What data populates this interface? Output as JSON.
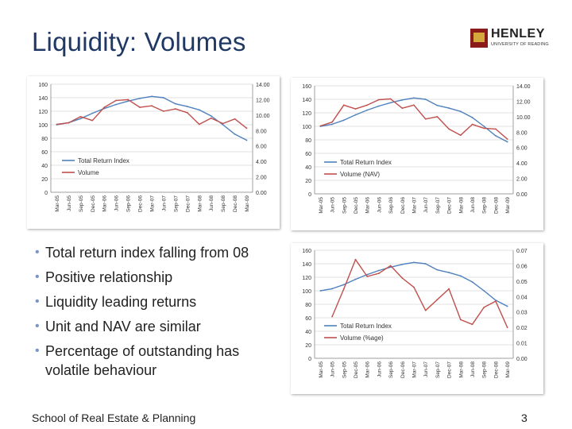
{
  "slide": {
    "title": "Liquidity: Volumes",
    "footer": "School of Real Estate & Planning",
    "page_number": "3",
    "logo": {
      "name": "HENLEY",
      "sub": "UNIVERSITY OF READING"
    }
  },
  "bullets": [
    "Total return index falling from 08",
    "Positive relationship",
    "Liquidity leading returns",
    "Unit and NAV are similar",
    "Percentage of outstanding has volatile behaviour"
  ],
  "colors": {
    "tri": "#4f81bd",
    "vol": "#c0504d",
    "grid": "#d9d9d9",
    "title": "#1f3864"
  },
  "chart_data": [
    {
      "type": "line",
      "categories": [
        "Mar-05",
        "Jun-05",
        "Sep-05",
        "Dec-05",
        "Mar-06",
        "Jun-06",
        "Sep-06",
        "Dec-06",
        "Mar-07",
        "Jun-07",
        "Sep-07",
        "Dec-07",
        "Mar-08",
        "Jun-08",
        "Sep-08",
        "Dec-08",
        "Mar-09"
      ],
      "left_axis": {
        "min": 0,
        "max": 160,
        "ticks": [
          "0",
          "20",
          "40",
          "60",
          "80",
          "100",
          "120",
          "140",
          "160"
        ]
      },
      "right_axis": {
        "min": 0,
        "max": 14,
        "ticks": [
          "0.00",
          "2.00",
          "4.00",
          "6.00",
          "8.00",
          "10.00",
          "12.00",
          "14.00"
        ]
      },
      "series": [
        {
          "name": "Total Return Index",
          "axis": "left",
          "values": [
            100,
            103,
            109,
            117,
            124,
            130,
            135,
            139,
            142,
            140,
            131,
            127,
            122,
            113,
            100,
            86,
            77
          ]
        },
        {
          "name": "Volume",
          "axis": "right",
          "values": [
            8.8,
            9.0,
            9.8,
            9.3,
            11.0,
            11.9,
            12.0,
            11.0,
            11.2,
            10.5,
            10.8,
            10.3,
            8.8,
            9.6,
            8.9,
            9.5,
            8.3
          ]
        }
      ]
    },
    {
      "type": "line",
      "categories": [
        "Mar-05",
        "Jun-05",
        "Sep-05",
        "Dec-05",
        "Mar-06",
        "Jun-06",
        "Sep-06",
        "Dec-06",
        "Mar-07",
        "Jun-07",
        "Sep-07",
        "Dec-07",
        "Mar-08",
        "Jun-08",
        "Sep-08",
        "Dec-08",
        "Mar-09"
      ],
      "left_axis": {
        "min": 0,
        "max": 160,
        "ticks": [
          "0",
          "20",
          "40",
          "60",
          "80",
          "100",
          "120",
          "140",
          "160"
        ]
      },
      "right_axis": {
        "min": 0,
        "max": 14,
        "ticks": [
          "0.00",
          "2.00",
          "4.00",
          "6.00",
          "8.00",
          "10.00",
          "12.00",
          "14.00"
        ]
      },
      "series": [
        {
          "name": "Total Return Index",
          "axis": "left",
          "values": [
            100,
            103,
            109,
            117,
            124,
            130,
            135,
            139,
            142,
            140,
            131,
            127,
            122,
            113,
            100,
            86,
            77
          ]
        },
        {
          "name": "Volume (NAV)",
          "axis": "right",
          "values": [
            8.8,
            9.3,
            11.5,
            11.0,
            11.5,
            12.2,
            12.3,
            11.1,
            11.5,
            9.7,
            10.0,
            8.4,
            7.6,
            9.0,
            8.5,
            8.4,
            7.1
          ]
        }
      ]
    },
    {
      "type": "line",
      "categories": [
        "Mar-05",
        "Jun-05",
        "Sep-05",
        "Dec-05",
        "Mar-06",
        "Jun-06",
        "Sep-06",
        "Dec-06",
        "Mar-07",
        "Jun-07",
        "Sep-07",
        "Dec-07",
        "Mar-08",
        "Jun-08",
        "Sep-08",
        "Dec-08",
        "Mar-09"
      ],
      "left_axis": {
        "min": 0,
        "max": 160,
        "ticks": [
          "0",
          "20",
          "40",
          "60",
          "80",
          "100",
          "120",
          "140",
          "160"
        ]
      },
      "right_axis": {
        "min": 0,
        "max": 0.07,
        "ticks": [
          "0.00",
          "0.01",
          "0.02",
          "0.03",
          "0.04",
          "0.05",
          "0.06",
          "0.07"
        ]
      },
      "series": [
        {
          "name": "Total Return Index",
          "axis": "left",
          "values": [
            100,
            103,
            109,
            117,
            124,
            130,
            135,
            139,
            142,
            140,
            131,
            127,
            122,
            113,
            100,
            86,
            77
          ]
        },
        {
          "name": "Volume (%age)",
          "axis": "right",
          "values": [
            null,
            0.027,
            0.045,
            0.064,
            0.053,
            0.055,
            0.06,
            0.052,
            0.046,
            0.031,
            0.038,
            0.045,
            0.025,
            0.022,
            0.033,
            0.037,
            0.02
          ]
        }
      ]
    }
  ]
}
